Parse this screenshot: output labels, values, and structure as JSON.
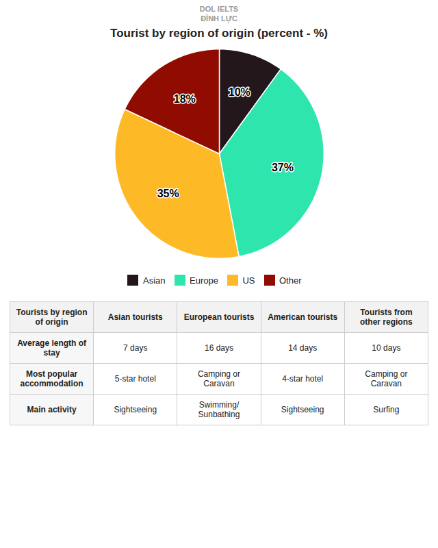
{
  "chart_data": {
    "type": "pie",
    "title": "Tourist by region of origin (percent - %)",
    "categories": [
      "Asian",
      "Europe",
      "US",
      "Other"
    ],
    "values": [
      10,
      37,
      35,
      18
    ],
    "value_labels": [
      "10%",
      "37%",
      "35%",
      "18%"
    ],
    "data_labels": true,
    "legend": "bottom",
    "annotations": [
      "DOL IELTS",
      "ĐÌNH LỰC"
    ],
    "table": {
      "header": [
        "Tourists by region\nof origin",
        "Asian tourists",
        "European tourists",
        "American tourists",
        "Tourists from\nother regions"
      ],
      "rows": [
        [
          "Average length of stay",
          "7 days",
          "16 days",
          "14 days",
          "10 days"
        ],
        [
          "Most popular\naccommodation",
          "5-star hotel",
          "Camping or Caravan",
          "4-star hotel",
          "Camping or Caravan"
        ],
        [
          "Main activity",
          "Sightseeing",
          "Swimming/\nSunbathing",
          "Sightseeing",
          "Surfing"
        ]
      ]
    }
  }
}
